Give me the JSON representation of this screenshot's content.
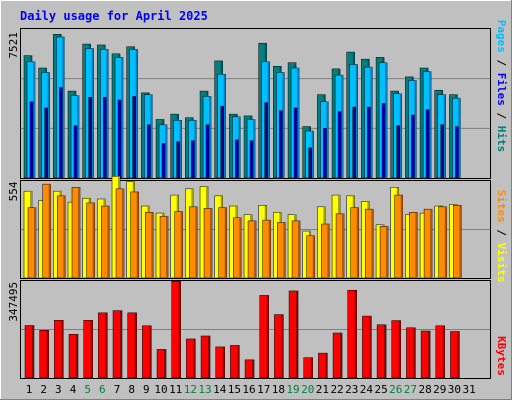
{
  "title": "Daily usage for April 2025",
  "colors": {
    "background": "#c0c0c0",
    "title": "#0000ff",
    "hits": "#008080",
    "files": "#00bfff",
    "pages": "#0000ff",
    "sites": "#ffff00",
    "visits": "#ff8c00",
    "kbytes": "#ff0000",
    "weekend_label": "#008040",
    "grid": "#808080"
  },
  "chart_data": [
    {
      "type": "bar",
      "panel": "hits-files-pages",
      "categories": [
        "1",
        "2",
        "3",
        "4",
        "5",
        "6",
        "7",
        "8",
        "9",
        "10",
        "11",
        "12",
        "13",
        "14",
        "15",
        "16",
        "17",
        "18",
        "19",
        "20",
        "21",
        "22",
        "23",
        "24",
        "25",
        "26",
        "27",
        "28",
        "29",
        "30",
        "31"
      ],
      "weekend_days": [
        "5",
        "6",
        "12",
        "13",
        "19",
        "20",
        "26",
        "27"
      ],
      "y_tick_label": "7521",
      "ylim": [
        0,
        8400
      ],
      "right_label": [
        "Pages",
        "Files",
        "Hits"
      ],
      "series": [
        {
          "name": "Hits",
          "values": [
            6900,
            6200,
            8100,
            4900,
            7550,
            7500,
            7000,
            7400,
            4800,
            3300,
            3600,
            3400,
            4900,
            6600,
            3600,
            3500,
            7600,
            6300,
            6500,
            2900,
            4700,
            6150,
            7100,
            6700,
            6800,
            4900,
            5700,
            6200,
            4950,
            4700,
            0
          ]
        },
        {
          "name": "Files",
          "values": [
            6550,
            5950,
            7950,
            4650,
            7300,
            7250,
            6800,
            7250,
            4700,
            3000,
            3250,
            3250,
            4600,
            5850,
            3450,
            3300,
            6550,
            5950,
            6200,
            2650,
            4300,
            5800,
            6400,
            6250,
            6500,
            4750,
            5500,
            6000,
            4700,
            4500,
            0
          ]
        },
        {
          "name": "Pages",
          "values": [
            4300,
            3950,
            5100,
            2950,
            4550,
            4550,
            4400,
            4600,
            3000,
            1950,
            2050,
            2100,
            3000,
            4050,
            2150,
            2100,
            4250,
            3800,
            3950,
            1700,
            2800,
            3750,
            4000,
            4000,
            4200,
            2950,
            3550,
            3850,
            3000,
            2900,
            0
          ]
        }
      ]
    },
    {
      "type": "bar",
      "panel": "sites-visits",
      "categories": [
        "1",
        "2",
        "3",
        "4",
        "5",
        "6",
        "7",
        "8",
        "9",
        "10",
        "11",
        "12",
        "13",
        "14",
        "15",
        "16",
        "17",
        "18",
        "19",
        "20",
        "21",
        "22",
        "23",
        "24",
        "25",
        "26",
        "27",
        "28",
        "29",
        "30",
        "31"
      ],
      "y_tick_label": "554",
      "ylim": [
        0,
        620
      ],
      "right_label": [
        "Sites",
        "Visits"
      ],
      "series": [
        {
          "name": "Sites",
          "values": [
            555,
            495,
            555,
            485,
            510,
            505,
            650,
            615,
            460,
            415,
            530,
            570,
            585,
            525,
            460,
            405,
            465,
            420,
            405,
            300,
            455,
            530,
            525,
            490,
            340,
            580,
            405,
            415,
            460,
            470,
            0
          ]
        },
        {
          "name": "Visits",
          "values": [
            450,
            600,
            525,
            580,
            480,
            460,
            570,
            550,
            420,
            395,
            425,
            455,
            445,
            450,
            385,
            365,
            370,
            355,
            365,
            270,
            345,
            410,
            450,
            440,
            330,
            530,
            420,
            440,
            455,
            465,
            0
          ]
        }
      ]
    },
    {
      "type": "bar",
      "panel": "kbytes",
      "categories": [
        "1",
        "2",
        "3",
        "4",
        "5",
        "6",
        "7",
        "8",
        "9",
        "10",
        "11",
        "12",
        "13",
        "14",
        "15",
        "16",
        "17",
        "18",
        "19",
        "20",
        "21",
        "22",
        "23",
        "24",
        "25",
        "26",
        "27",
        "28",
        "29",
        "30",
        "31"
      ],
      "y_tick_label": "347495",
      "ylim": [
        0,
        390000
      ],
      "right_label": [
        "KBytes"
      ],
      "series": [
        {
          "name": "KBytes",
          "values": [
            211000,
            192000,
            232000,
            176000,
            232000,
            262000,
            271000,
            262000,
            210000,
            115000,
            389000,
            157000,
            169000,
            125000,
            131000,
            73000,
            332000,
            255000,
            350000,
            82000,
            100000,
            181000,
            353000,
            249000,
            214000,
            231000,
            202000,
            189000,
            210000,
            187000,
            0
          ]
        }
      ]
    }
  ]
}
